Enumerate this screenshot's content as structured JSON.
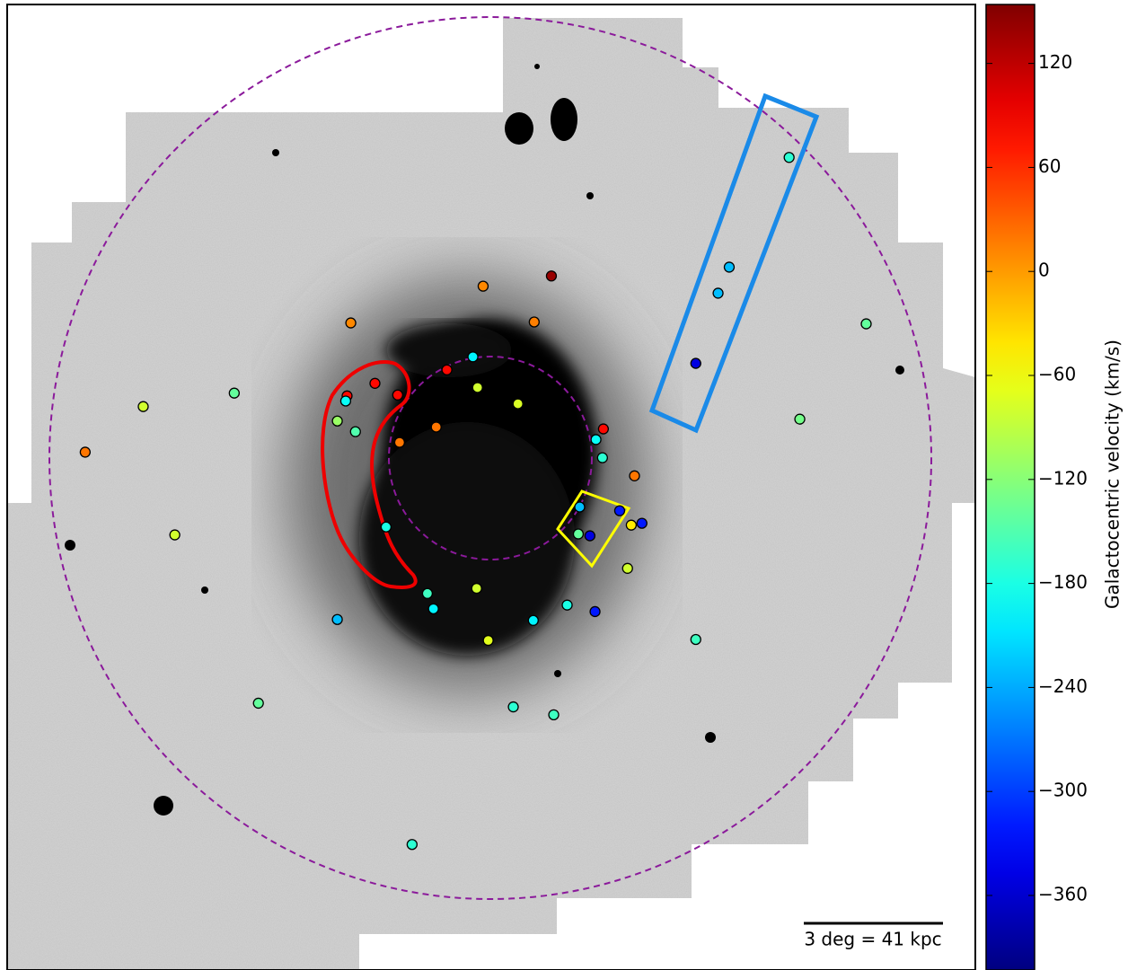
{
  "chart_data": {
    "type": "scatter",
    "x": [
      6.44,
      5.15,
      4.91,
      4.43,
      8.1,
      -0.15,
      1.32,
      -3.0,
      0.95,
      -0.37,
      -5.51,
      -7.47,
      -2.48,
      -1.99,
      -3.08,
      -3.11,
      -0.93,
      -0.27,
      0.6,
      -3.29,
      -2.9,
      -1.16,
      -1.95,
      -8.72,
      2.44,
      2.28,
      2.42,
      3.11,
      6.67,
      1.93,
      2.79,
      3.27,
      3.04,
      1.9,
      2.15,
      -2.24,
      -6.79,
      2.96,
      -0.29,
      -1.35,
      -1.22,
      -3.29,
      0.93,
      1.66,
      2.26,
      -0.04,
      4.43,
      -4.99,
      0.5,
      1.37,
      -1.68
    ],
    "y": [
      6.48,
      4.12,
      3.56,
      2.05,
      2.9,
      3.71,
      3.93,
      2.92,
      2.94,
      2.19,
      1.41,
      1.12,
      1.62,
      1.37,
      1.35,
      1.24,
      1.91,
      1.53,
      1.18,
      0.81,
      0.58,
      0.68,
      0.35,
      0.14,
      0.64,
      0.41,
      0.02,
      -0.37,
      0.85,
      -1.04,
      -1.12,
      -1.39,
      -1.43,
      -1.62,
      -1.66,
      -1.47,
      -1.64,
      -2.36,
      -2.79,
      -2.9,
      -3.23,
      -3.46,
      -3.48,
      -3.15,
      -3.29,
      -3.91,
      -3.89,
      -5.26,
      -5.34,
      -5.51,
      -8.3
    ],
    "values": [
      -170,
      -230,
      -230,
      -350,
      -140,
      10,
      140,
      10,
      15,
      -200,
      -140,
      -80,
      80,
      80,
      80,
      -190,
      80,
      -80,
      -75,
      -110,
      -150,
      20,
      20,
      20,
      80,
      -190,
      -170,
      20,
      -130,
      -230,
      -320,
      -320,
      -45,
      -140,
      -350,
      -180,
      -80,
      -80,
      -80,
      -160,
      -200,
      -230,
      -200,
      -180,
      -320,
      -70,
      -160,
      -140,
      -170,
      -160,
      -170
    ],
    "xlim": [
      -10.4,
      10.45
    ],
    "ylim": [
      -11.0,
      9.77
    ],
    "colormap": "jet",
    "clim": [
      -403,
      154
    ],
    "cticks": [
      120,
      60,
      0,
      {
        "value": -60,
        "label": "−60"
      },
      {
        "value": -120,
        "label": "−120"
      },
      {
        "value": -180,
        "label": "−180"
      },
      {
        "value": -240,
        "label": "−240"
      },
      {
        "value": -300,
        "label": "−300"
      },
      {
        "value": -360,
        "label": "−360"
      }
    ],
    "colorbar_label": "Galactocentric velocity (km/s)",
    "scale_bar_label": "3 deg = 41 kpc"
  }
}
